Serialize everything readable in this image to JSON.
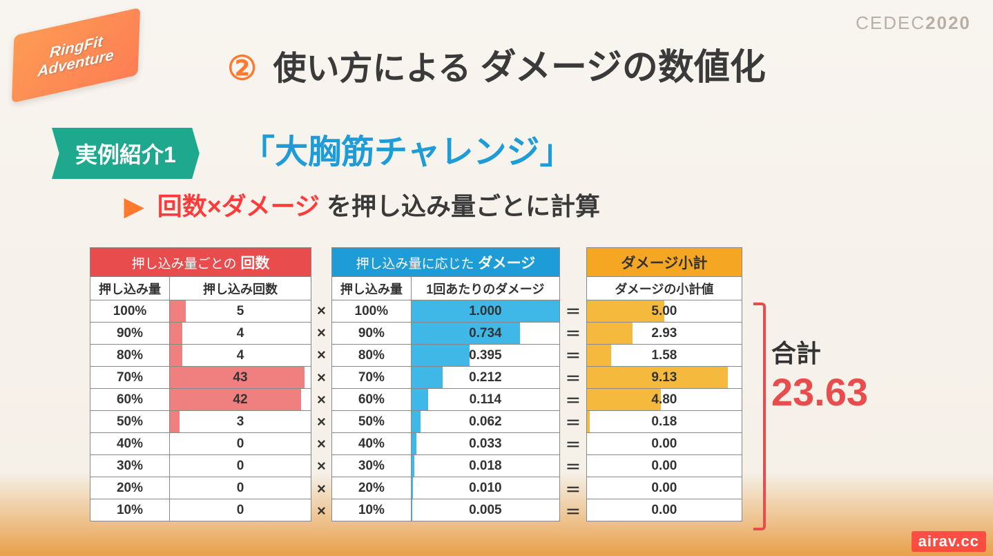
{
  "header": {
    "conf_logo": "CEDEC",
    "conf_year": "2020",
    "game_logo_line1": "RingFit",
    "game_logo_line2": "Adventure"
  },
  "title": {
    "num": "②",
    "part1": "使い方による",
    "part2": "ダメージの数値化"
  },
  "example": {
    "badge": "実例紹介1",
    "title": "「大胸筋チャレンジ」",
    "sub_arrow": "▶",
    "sub_hl": "回数×ダメージ",
    "sub_rest": " を押し込み量ごとに計算"
  },
  "ops": {
    "mult": "×",
    "eq": "＝"
  },
  "total": {
    "label": "合計",
    "value": "23.63"
  },
  "watermark": "airav.cc",
  "tables": {
    "red": {
      "title_light": "押し込み量ごとの",
      "title_bold": " 回数",
      "col1": "押し込み量",
      "col2": "押し込み回数",
      "col1_width": 115,
      "col2_width": 205,
      "bar_max": 45,
      "bar_color": "#f08080",
      "rows": [
        {
          "pct": "100%",
          "val": "5",
          "bar": 5
        },
        {
          "pct": "90%",
          "val": "4",
          "bar": 4
        },
        {
          "pct": "80%",
          "val": "4",
          "bar": 4
        },
        {
          "pct": "70%",
          "val": "43",
          "bar": 43
        },
        {
          "pct": "60%",
          "val": "42",
          "bar": 42
        },
        {
          "pct": "50%",
          "val": "3",
          "bar": 3
        },
        {
          "pct": "40%",
          "val": "0",
          "bar": 0
        },
        {
          "pct": "30%",
          "val": "0",
          "bar": 0
        },
        {
          "pct": "20%",
          "val": "0",
          "bar": 0
        },
        {
          "pct": "10%",
          "val": "0",
          "bar": 0
        }
      ]
    },
    "blue": {
      "title_light": "押し込み量に応じた",
      "title_bold": " ダメージ",
      "col1": "押し込み量",
      "col2": "1回あたりのダメージ",
      "col1_width": 115,
      "col2_width": 215,
      "bar_max": 1.0,
      "bar_color": "#3fb8e8",
      "rows": [
        {
          "pct": "100%",
          "val": "1.000",
          "bar": 1.0
        },
        {
          "pct": "90%",
          "val": "0.734",
          "bar": 0.734
        },
        {
          "pct": "80%",
          "val": "0.395",
          "bar": 0.395
        },
        {
          "pct": "70%",
          "val": "0.212",
          "bar": 0.212
        },
        {
          "pct": "60%",
          "val": "0.114",
          "bar": 0.114
        },
        {
          "pct": "50%",
          "val": "0.062",
          "bar": 0.062
        },
        {
          "pct": "40%",
          "val": "0.033",
          "bar": 0.033
        },
        {
          "pct": "30%",
          "val": "0.018",
          "bar": 0.018
        },
        {
          "pct": "20%",
          "val": "0.010",
          "bar": 0.01
        },
        {
          "pct": "10%",
          "val": "0.005",
          "bar": 0.005
        }
      ]
    },
    "orange": {
      "title": "ダメージ小計",
      "col1": "ダメージの小計値",
      "col1_width": 225,
      "bar_max": 10,
      "bar_color": "#f5b93d",
      "rows": [
        {
          "val": "5.00",
          "bar": 5.0
        },
        {
          "val": "2.93",
          "bar": 2.93
        },
        {
          "val": "1.58",
          "bar": 1.58
        },
        {
          "val": "9.13",
          "bar": 9.13
        },
        {
          "val": "4.80",
          "bar": 4.8
        },
        {
          "val": "0.18",
          "bar": 0.18
        },
        {
          "val": "0.00",
          "bar": 0
        },
        {
          "val": "0.00",
          "bar": 0
        },
        {
          "val": "0.00",
          "bar": 0
        },
        {
          "val": "0.00",
          "bar": 0
        }
      ]
    }
  }
}
